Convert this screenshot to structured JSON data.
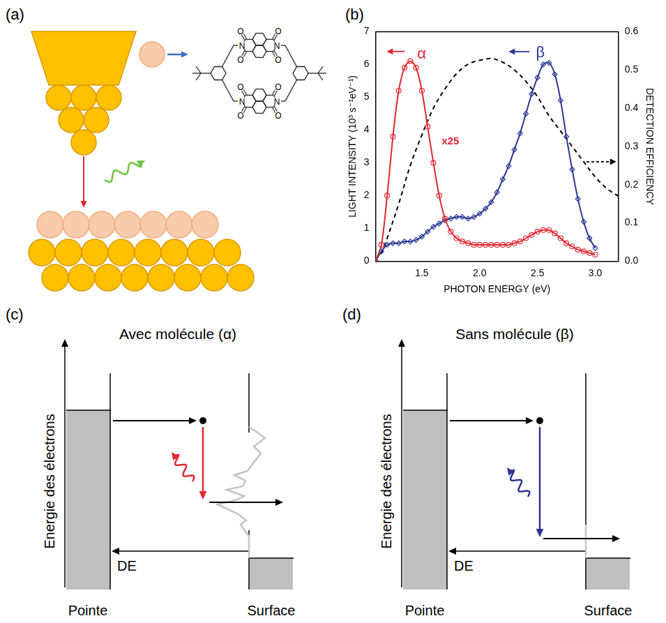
{
  "panels": {
    "a": {
      "letter": "(a)",
      "atom_labels": [
        "N",
        "O"
      ]
    },
    "b": {
      "letter": "(b)"
    },
    "c": {
      "letter": "(c)",
      "title": "Avec molécule (α)",
      "y_label": "Energie des électrons",
      "tip": "Pointe",
      "surface": "Surface",
      "arrow_label": "DE"
    },
    "d": {
      "letter": "(d)",
      "title": "Sans molécule (β)",
      "y_label": "Energie des électrons",
      "tip": "Pointe",
      "surface": "Surface",
      "arrow_label": "DE"
    }
  },
  "chart_data": {
    "type": "line",
    "x_label": "PHOTON ENERGY (eV)",
    "y_label": "LIGHT INTENSITY (10³ s⁻¹eV⁻¹)",
    "y2_label": "DETECTION EFFICIENCY",
    "xlim": [
      1.1,
      3.2
    ],
    "xticks": [
      1.5,
      {
        "value": 2,
        "label": "2.0"
      },
      2.5,
      {
        "value": 3,
        "label": "3.0"
      }
    ],
    "ylim": [
      0,
      7
    ],
    "yticks": [
      0,
      1,
      2,
      3,
      4,
      5,
      6,
      7
    ],
    "y2lim": [
      0,
      0.6
    ],
    "y2ticks": [
      {
        "value": 0,
        "label": "0.0"
      },
      0.1,
      0.2,
      0.3,
      0.4,
      0.5,
      0.6
    ],
    "grid": false,
    "series": [
      {
        "name": "α",
        "color": "#e3262f",
        "marker": "circle",
        "line_style": "solid",
        "scale_note": "x25",
        "x": [
          1.1,
          1.15,
          1.2,
          1.25,
          1.3,
          1.35,
          1.4,
          1.45,
          1.5,
          1.55,
          1.6,
          1.65,
          1.7,
          1.75,
          1.8,
          1.85,
          1.9,
          1.95,
          2.0,
          2.05,
          2.1,
          2.15,
          2.2,
          2.25,
          2.3,
          2.35,
          2.4,
          2.45,
          2.5,
          2.55,
          2.6,
          2.65,
          2.7,
          2.75,
          2.8,
          2.85,
          2.9,
          2.95,
          3.0
        ],
        "values": [
          0,
          0.5,
          2.0,
          3.8,
          5.2,
          5.9,
          6.1,
          5.9,
          5.2,
          4.1,
          3.0,
          2.0,
          1.3,
          0.9,
          0.7,
          0.6,
          0.55,
          0.5,
          0.5,
          0.5,
          0.5,
          0.5,
          0.5,
          0.5,
          0.55,
          0.6,
          0.7,
          0.8,
          0.9,
          0.95,
          0.95,
          0.85,
          0.7,
          0.55,
          0.45,
          0.35,
          0.3,
          0.25,
          0.2
        ]
      },
      {
        "name": "β",
        "color": "#2b3796",
        "marker": "diamond",
        "line_style": "solid",
        "x": [
          1.1,
          1.15,
          1.2,
          1.25,
          1.3,
          1.35,
          1.4,
          1.45,
          1.5,
          1.55,
          1.6,
          1.65,
          1.7,
          1.75,
          1.8,
          1.85,
          1.9,
          1.95,
          2.0,
          2.05,
          2.1,
          2.15,
          2.2,
          2.25,
          2.3,
          2.35,
          2.4,
          2.45,
          2.5,
          2.55,
          2.6,
          2.65,
          2.7,
          2.75,
          2.8,
          2.85,
          2.9,
          2.95,
          3.0
        ],
        "values": [
          0,
          0.3,
          0.5,
          0.55,
          0.55,
          0.6,
          0.6,
          0.65,
          0.75,
          0.9,
          1.05,
          1.15,
          1.25,
          1.3,
          1.35,
          1.35,
          1.3,
          1.35,
          1.45,
          1.6,
          1.8,
          2.1,
          2.5,
          2.9,
          3.4,
          3.9,
          4.5,
          5.1,
          5.6,
          6.0,
          6.05,
          5.7,
          4.9,
          3.8,
          2.8,
          1.9,
          1.2,
          0.7,
          0.4
        ]
      },
      {
        "color": "#000000",
        "marker": "none",
        "line_style": "dashed",
        "axis": "y2",
        "x": [
          1.15,
          1.2,
          1.3,
          1.4,
          1.5,
          1.6,
          1.7,
          1.8,
          1.9,
          2.0,
          2.1,
          2.2,
          2.3,
          2.4,
          2.5,
          2.6,
          2.7,
          2.8,
          2.9,
          3.0,
          3.1,
          3.2
        ],
        "values": [
          0.02,
          0.06,
          0.15,
          0.25,
          0.33,
          0.4,
          0.45,
          0.49,
          0.515,
          0.525,
          0.53,
          0.52,
          0.5,
          0.47,
          0.43,
          0.38,
          0.34,
          0.3,
          0.26,
          0.22,
          0.19,
          0.17
        ]
      }
    ]
  }
}
